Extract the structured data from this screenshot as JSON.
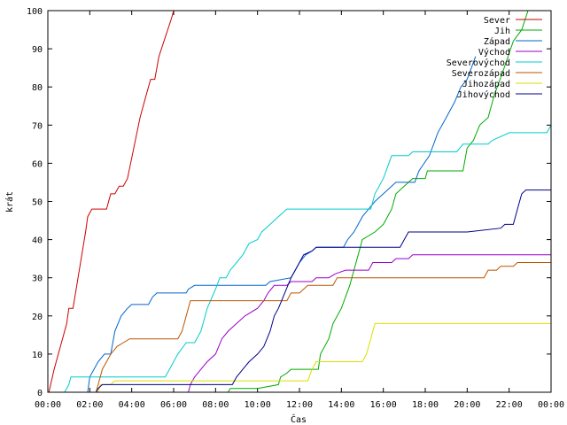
{
  "chart_data": {
    "type": "line",
    "title": "",
    "xlabel": "Čas",
    "ylabel": "krát",
    "ylim": [
      0,
      100
    ],
    "xlim": [
      0,
      24
    ],
    "yticks": [
      0,
      10,
      20,
      30,
      40,
      50,
      60,
      70,
      80,
      90,
      100
    ],
    "xticks": [
      0,
      2,
      4,
      6,
      8,
      10,
      12,
      14,
      16,
      18,
      20,
      22,
      24
    ],
    "xtick_labels": [
      "00:00",
      "02:00",
      "04:00",
      "06:00",
      "08:00",
      "10:00",
      "12:00",
      "14:00",
      "16:00",
      "18:00",
      "20:00",
      "22:00",
      "00:00"
    ],
    "grid": false,
    "legend_position": "top-right",
    "series": [
      {
        "name": "Sever",
        "color": "#cc0000",
        "points": [
          [
            0.05,
            0
          ],
          [
            0.3,
            6
          ],
          [
            0.6,
            12
          ],
          [
            0.9,
            18
          ],
          [
            1.0,
            22
          ],
          [
            1.2,
            22
          ],
          [
            1.5,
            32
          ],
          [
            1.8,
            42
          ],
          [
            1.9,
            46
          ],
          [
            2.1,
            48
          ],
          [
            2.4,
            48
          ],
          [
            2.8,
            48
          ],
          [
            2.9,
            50
          ],
          [
            3.0,
            52
          ],
          [
            3.2,
            52
          ],
          [
            3.4,
            54
          ],
          [
            3.6,
            54
          ],
          [
            3.8,
            56
          ],
          [
            4.1,
            64
          ],
          [
            4.4,
            72
          ],
          [
            4.7,
            78
          ],
          [
            4.9,
            82
          ],
          [
            5.1,
            82
          ],
          [
            5.3,
            88
          ],
          [
            5.6,
            93
          ],
          [
            5.9,
            98
          ],
          [
            6.0,
            100
          ]
        ]
      },
      {
        "name": "Jih",
        "color": "#00aa00",
        "points": [
          [
            8.6,
            0
          ],
          [
            8.7,
            1
          ],
          [
            10.0,
            1
          ],
          [
            11.0,
            2
          ],
          [
            11.1,
            4
          ],
          [
            11.4,
            5
          ],
          [
            11.6,
            6
          ],
          [
            12.9,
            6
          ],
          [
            13.0,
            10
          ],
          [
            13.4,
            14
          ],
          [
            13.6,
            18
          ],
          [
            14.0,
            22
          ],
          [
            14.4,
            28
          ],
          [
            14.7,
            34
          ],
          [
            15.0,
            40
          ],
          [
            15.6,
            42
          ],
          [
            16.0,
            44
          ],
          [
            16.4,
            48
          ],
          [
            16.6,
            52
          ],
          [
            17.0,
            54
          ],
          [
            17.4,
            56
          ],
          [
            18.0,
            56
          ],
          [
            18.1,
            58
          ],
          [
            19.8,
            58
          ],
          [
            20.0,
            64
          ],
          [
            20.3,
            66
          ],
          [
            20.6,
            70
          ],
          [
            21.0,
            72
          ],
          [
            21.3,
            78
          ],
          [
            21.7,
            84
          ],
          [
            22.2,
            92
          ],
          [
            22.6,
            95
          ],
          [
            22.9,
            100
          ]
        ]
      },
      {
        "name": "Západ",
        "color": "#0066cc",
        "points": [
          [
            1.9,
            0
          ],
          [
            2.0,
            4
          ],
          [
            2.4,
            8
          ],
          [
            2.7,
            10
          ],
          [
            3.0,
            10
          ],
          [
            3.2,
            16
          ],
          [
            3.5,
            20
          ],
          [
            3.8,
            22
          ],
          [
            4.0,
            23
          ],
          [
            4.8,
            23
          ],
          [
            5.0,
            25
          ],
          [
            5.2,
            26
          ],
          [
            6.6,
            26
          ],
          [
            6.7,
            27
          ],
          [
            7.0,
            28
          ],
          [
            10.4,
            28
          ],
          [
            10.6,
            29
          ],
          [
            11.6,
            30
          ],
          [
            11.8,
            32
          ],
          [
            12.0,
            34
          ],
          [
            12.3,
            36
          ],
          [
            12.6,
            37
          ],
          [
            12.8,
            38
          ],
          [
            14.1,
            38
          ],
          [
            14.3,
            40
          ],
          [
            14.6,
            42
          ],
          [
            14.8,
            44
          ],
          [
            15.0,
            46
          ],
          [
            15.3,
            48
          ],
          [
            15.6,
            50
          ],
          [
            16.0,
            52
          ],
          [
            16.4,
            54
          ],
          [
            16.6,
            55
          ],
          [
            17.5,
            55
          ],
          [
            17.7,
            58
          ],
          [
            18.2,
            62
          ],
          [
            18.6,
            68
          ],
          [
            19.0,
            72
          ],
          [
            19.4,
            76
          ],
          [
            19.7,
            80
          ],
          [
            20.0,
            82
          ],
          [
            20.2,
            85
          ],
          [
            20.4,
            88
          ]
        ]
      },
      {
        "name": "Východ",
        "color": "#9900cc",
        "points": [
          [
            6.7,
            0
          ],
          [
            6.8,
            2
          ],
          [
            7.0,
            4
          ],
          [
            7.3,
            6
          ],
          [
            7.6,
            8
          ],
          [
            8.0,
            10
          ],
          [
            8.3,
            14
          ],
          [
            8.6,
            16
          ],
          [
            9.0,
            18
          ],
          [
            9.4,
            20
          ],
          [
            10.0,
            22
          ],
          [
            10.3,
            24
          ],
          [
            10.5,
            26
          ],
          [
            10.8,
            28
          ],
          [
            11.4,
            28
          ],
          [
            11.6,
            29
          ],
          [
            12.6,
            29
          ],
          [
            12.8,
            30
          ],
          [
            13.4,
            30
          ],
          [
            13.7,
            31
          ],
          [
            14.2,
            32
          ],
          [
            15.3,
            32
          ],
          [
            15.5,
            34
          ],
          [
            16.4,
            34
          ],
          [
            16.6,
            35
          ],
          [
            17.2,
            35
          ],
          [
            17.4,
            36
          ],
          [
            24,
            36
          ]
        ]
      },
      {
        "name": "Severovýchod",
        "color": "#00cccc",
        "points": [
          [
            0.8,
            0
          ],
          [
            1.0,
            2
          ],
          [
            1.1,
            4
          ],
          [
            5.6,
            4
          ],
          [
            5.8,
            6
          ],
          [
            6.0,
            8
          ],
          [
            6.2,
            10
          ],
          [
            6.6,
            13
          ],
          [
            7.0,
            13
          ],
          [
            7.3,
            16
          ],
          [
            7.6,
            22
          ],
          [
            8.0,
            27
          ],
          [
            8.2,
            30
          ],
          [
            8.5,
            30
          ],
          [
            8.7,
            32
          ],
          [
            9.0,
            34
          ],
          [
            9.3,
            36
          ],
          [
            9.6,
            39
          ],
          [
            10.0,
            40
          ],
          [
            10.2,
            42
          ],
          [
            10.6,
            44
          ],
          [
            11.0,
            46
          ],
          [
            11.4,
            48
          ],
          [
            15.4,
            48
          ],
          [
            15.6,
            52
          ],
          [
            16.0,
            56
          ],
          [
            16.4,
            62
          ],
          [
            17.2,
            62
          ],
          [
            17.4,
            63
          ],
          [
            19.5,
            63
          ],
          [
            19.8,
            65
          ],
          [
            21.0,
            65
          ],
          [
            21.2,
            66
          ],
          [
            22.0,
            68
          ],
          [
            23.8,
            68
          ],
          [
            24,
            70
          ]
        ]
      },
      {
        "name": "Severozápad",
        "color": "#bb5500",
        "points": [
          [
            2.3,
            0
          ],
          [
            2.4,
            2
          ],
          [
            2.6,
            6
          ],
          [
            2.8,
            8
          ],
          [
            3.0,
            10
          ],
          [
            3.3,
            12
          ],
          [
            3.6,
            13
          ],
          [
            3.9,
            14
          ],
          [
            6.2,
            14
          ],
          [
            6.4,
            16
          ],
          [
            6.6,
            20
          ],
          [
            6.8,
            24
          ],
          [
            11.4,
            24
          ],
          [
            11.6,
            26
          ],
          [
            12.0,
            26
          ],
          [
            12.4,
            28
          ],
          [
            13.6,
            28
          ],
          [
            13.8,
            30
          ],
          [
            20.8,
            30
          ],
          [
            21.0,
            32
          ],
          [
            21.4,
            32
          ],
          [
            21.6,
            33
          ],
          [
            22.2,
            33
          ],
          [
            22.4,
            34
          ],
          [
            24,
            34
          ]
        ]
      },
      {
        "name": "Jihozápad",
        "color": "#dddd00",
        "points": [
          [
            2.4,
            0
          ],
          [
            2.5,
            2
          ],
          [
            3.0,
            2
          ],
          [
            3.2,
            3
          ],
          [
            12.4,
            3
          ],
          [
            12.6,
            6
          ],
          [
            12.8,
            8
          ],
          [
            15.0,
            8
          ],
          [
            15.2,
            10
          ],
          [
            15.4,
            14
          ],
          [
            15.6,
            18
          ],
          [
            24,
            18
          ]
        ]
      },
      {
        "name": "Jihovýchod",
        "color": "#000088",
        "points": [
          [
            2.3,
            0
          ],
          [
            2.4,
            1
          ],
          [
            2.6,
            2
          ],
          [
            8.8,
            2
          ],
          [
            9.0,
            4
          ],
          [
            9.3,
            6
          ],
          [
            9.6,
            8
          ],
          [
            10.0,
            10
          ],
          [
            10.3,
            12
          ],
          [
            10.6,
            16
          ],
          [
            10.8,
            20
          ],
          [
            11.0,
            22
          ],
          [
            11.3,
            26
          ],
          [
            11.6,
            30
          ],
          [
            11.8,
            32
          ],
          [
            12.0,
            34
          ],
          [
            12.2,
            36
          ],
          [
            12.6,
            37
          ],
          [
            12.8,
            38
          ],
          [
            16.8,
            38
          ],
          [
            17.0,
            40
          ],
          [
            17.2,
            42
          ],
          [
            20.0,
            42
          ],
          [
            21.6,
            43
          ],
          [
            21.8,
            44
          ],
          [
            22.2,
            44
          ],
          [
            22.4,
            48
          ],
          [
            22.6,
            52
          ],
          [
            22.8,
            53
          ],
          [
            24,
            53
          ]
        ]
      }
    ]
  }
}
